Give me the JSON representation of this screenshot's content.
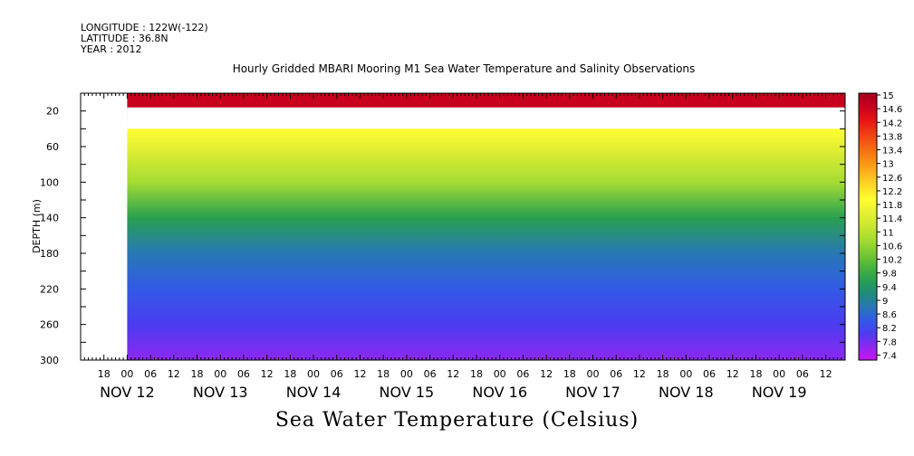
{
  "header": {
    "longitude": "LONGITUDE : 122W(-122)",
    "latitude": "LATITUDE : 36.8N",
    "year": "YEAR : 2012",
    "title": "Hourly Gridded MBARI Mooring M1 Sea Water Temperature and Salinity Observations",
    "variable_label": "Sea Water Temperature (Celsius)"
  },
  "chart_data": {
    "type": "heatmap",
    "title": "Hourly Gridded MBARI Mooring M1 Sea Water Temperature and Salinity Observations",
    "xlabel": "",
    "ylabel": "DEPTH (m)",
    "colorbar_label": "Sea Water Temperature (Celsius)",
    "x_range": [
      "2012-11-11T12:00",
      "2012-11-19T17:00"
    ],
    "data_start": "2012-11-12T00:00",
    "y_range": [
      300,
      0
    ],
    "y_ticks": [
      20,
      60,
      100,
      140,
      180,
      220,
      260,
      300
    ],
    "x_hour_ticks": [
      "18",
      "00",
      "06",
      "12",
      "18",
      "00",
      "06",
      "12",
      "18",
      "00",
      "06",
      "12",
      "18",
      "00",
      "06",
      "12",
      "18",
      "00",
      "06",
      "12",
      "18",
      "00",
      "06",
      "12",
      "18",
      "00",
      "06",
      "12",
      "18",
      "00",
      "06",
      "12"
    ],
    "x_day_labels": [
      "NOV 12",
      "NOV 13",
      "NOV 14",
      "NOV 15",
      "NOV 16",
      "NOV 17",
      "NOV 18",
      "NOV 19"
    ],
    "colorbar_levels": [
      15,
      14.6,
      14.2,
      13.8,
      13.4,
      13,
      12.6,
      12.2,
      11.8,
      11.4,
      11,
      10.6,
      10.2,
      9.8,
      9.4,
      9,
      8.6,
      8.2,
      7.8,
      7.4
    ],
    "colormap": [
      "#a0001e",
      "#c8001e",
      "#e61414",
      "#f03c14",
      "#f56414",
      "#fa8c14",
      "#ffb41e",
      "#ffdc28",
      "#ffff32",
      "#e6f032",
      "#c8e632",
      "#a5dc32",
      "#78c832",
      "#4bb43c",
      "#28a050",
      "#1e8c78",
      "#2878b4",
      "#325ae6",
      "#4b3cf0",
      "#8c28f0",
      "#c814f0"
    ],
    "depth_profile": [
      {
        "depth": 5,
        "temp": 14.7
      },
      {
        "depth": 16,
        "temp": 14.7
      },
      {
        "depth": 40,
        "temp": 12.0
      },
      {
        "depth": 60,
        "temp": 11.4
      },
      {
        "depth": 100,
        "temp": 10.8
      },
      {
        "depth": 140,
        "temp": 9.8
      },
      {
        "depth": 180,
        "temp": 9.0
      },
      {
        "depth": 220,
        "temp": 8.6
      },
      {
        "depth": 260,
        "temp": 8.2
      },
      {
        "depth": 300,
        "temp": 7.6
      }
    ],
    "missing_band": [
      16,
      40
    ],
    "grid": false
  }
}
